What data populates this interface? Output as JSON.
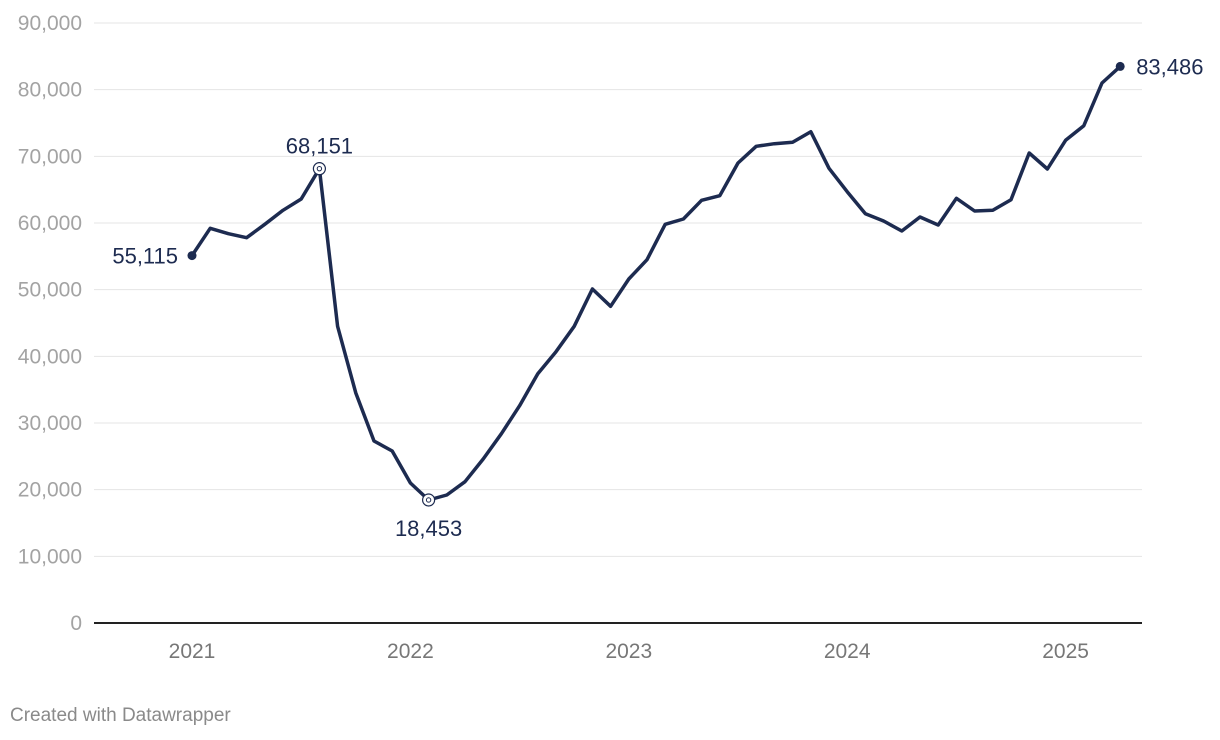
{
  "chart_data": {
    "type": "line",
    "title": "",
    "xlabel": "",
    "ylabel": "",
    "ylim": [
      0,
      90000
    ],
    "grid": true,
    "y_ticks": [
      "0",
      "10,000",
      "20,000",
      "30,000",
      "40,000",
      "50,000",
      "60,000",
      "70,000",
      "80,000",
      "90,000"
    ],
    "y_tick_values": [
      0,
      10000,
      20000,
      30000,
      40000,
      50000,
      60000,
      70000,
      80000,
      90000
    ],
    "x_ticks": [
      "2021",
      "2022",
      "2023",
      "2024",
      "2025"
    ],
    "x_tick_values": [
      "2021-01",
      "2022-01",
      "2023-01",
      "2024-01",
      "2025-01"
    ],
    "line_color": "#1d2b50",
    "series": [
      {
        "x": [
          "2021-01",
          "2021-02",
          "2021-03",
          "2021-04",
          "2021-05",
          "2021-06",
          "2021-07",
          "2021-08",
          "2021-09",
          "2021-10",
          "2021-11",
          "2021-12",
          "2022-01",
          "2022-02",
          "2022-03",
          "2022-04",
          "2022-05",
          "2022-06",
          "2022-07",
          "2022-08",
          "2022-09",
          "2022-10",
          "2022-11",
          "2022-12",
          "2023-01",
          "2023-02",
          "2023-03",
          "2023-04",
          "2023-05",
          "2023-06",
          "2023-07",
          "2023-08",
          "2023-09",
          "2023-10",
          "2023-11",
          "2023-12",
          "2024-01",
          "2024-02",
          "2024-03",
          "2024-04",
          "2024-05",
          "2024-06",
          "2024-07",
          "2024-08",
          "2024-09",
          "2024-10",
          "2024-11",
          "2024-12",
          "2025-01",
          "2025-02",
          "2025-03",
          "2025-04"
        ],
        "values": [
          55115,
          59200,
          58400,
          57800,
          59800,
          61900,
          63600,
          68151,
          44500,
          34500,
          27300,
          25800,
          21000,
          18453,
          19200,
          21200,
          24600,
          28400,
          32600,
          37400,
          40700,
          44500,
          50100,
          47500,
          51600,
          54500,
          59800,
          60600,
          63400,
          64100,
          69000,
          71500,
          71900,
          72100,
          73700,
          68200,
          64700,
          61400,
          60300,
          58800,
          60900,
          59700,
          63700,
          61800,
          61900,
          63500,
          70500,
          68100,
          72400,
          74600,
          81000,
          83486
        ]
      }
    ],
    "annotations": [
      {
        "x": "2021-01",
        "value": 55115,
        "label": "55,115",
        "marker": "filled"
      },
      {
        "x": "2021-08",
        "value": 68151,
        "label": "68,151",
        "marker": "open"
      },
      {
        "x": "2022-02",
        "value": 18453,
        "label": "18,453",
        "marker": "open"
      },
      {
        "x": "2025-04",
        "value": 83486,
        "label": "83,486",
        "marker": "filled"
      }
    ]
  },
  "credit": "Created with Datawrapper"
}
